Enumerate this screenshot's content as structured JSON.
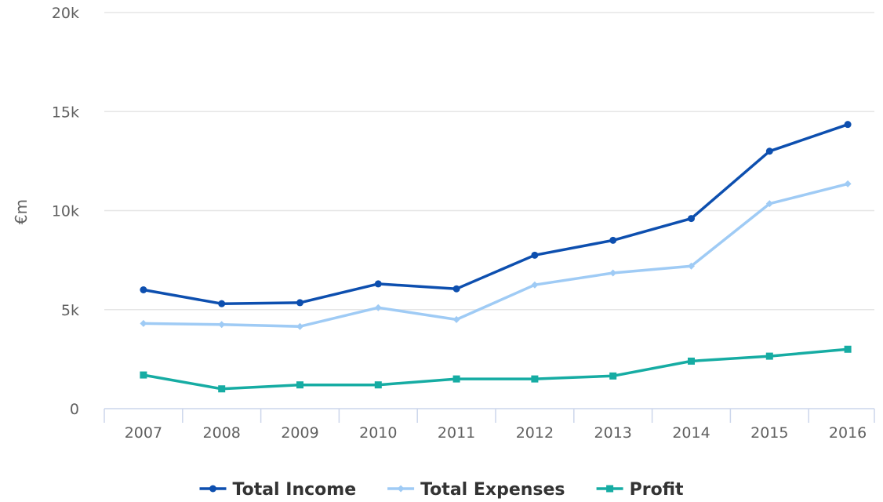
{
  "chart_data": {
    "type": "line",
    "x": [
      "2007",
      "2008",
      "2009",
      "2010",
      "2011",
      "2012",
      "2013",
      "2014",
      "2015",
      "2016"
    ],
    "ylabel": "€m",
    "xlabel": "",
    "ylim": [
      0,
      20000
    ],
    "yticks": [
      {
        "value": 0,
        "label": "0"
      },
      {
        "value": 5000,
        "label": "5k"
      },
      {
        "value": 10000,
        "label": "10k"
      },
      {
        "value": 15000,
        "label": "15k"
      },
      {
        "value": 20000,
        "label": "20k"
      }
    ],
    "grid": true,
    "legend_position": "bottom",
    "series": [
      {
        "name": "Total Income",
        "color": "#0d4faf",
        "marker": "circle",
        "values": [
          6000,
          5300,
          5350,
          6300,
          6050,
          7750,
          8500,
          9600,
          13000,
          14350
        ]
      },
      {
        "name": "Total Expenses",
        "color": "#9fcbf5",
        "marker": "diamond",
        "values": [
          4300,
          4250,
          4150,
          5100,
          4500,
          6250,
          6850,
          7200,
          10350,
          11350
        ]
      },
      {
        "name": "Profit",
        "color": "#16aca3",
        "marker": "square",
        "values": [
          1700,
          1000,
          1200,
          1200,
          1500,
          1500,
          1650,
          2400,
          2650,
          3000
        ]
      }
    ]
  }
}
